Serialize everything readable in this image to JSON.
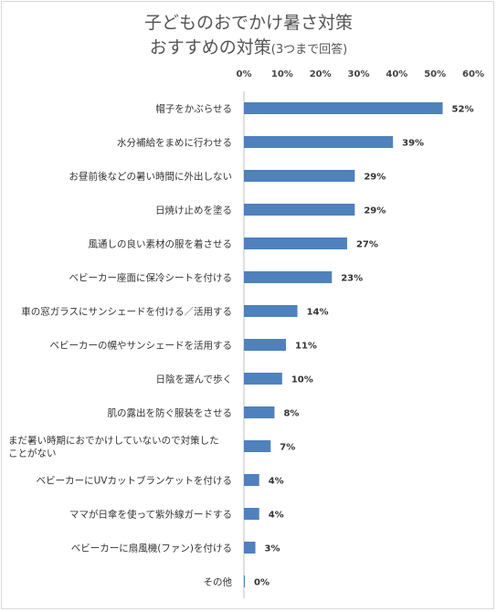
{
  "chart_data": {
    "type": "bar",
    "orientation": "horizontal",
    "title_line1": "子どものおでかけ暑さ対策",
    "title_line2": "おすすめの対策",
    "title_note": "(3つまで回答)",
    "categories": [
      "帽子をかぶらせる",
      "水分補給をまめに行わせる",
      "お昼前後などの暑い時間に外出しない",
      "日焼け止めを塗る",
      "風通しの良い素材の服を着させる",
      "ベビーカー座面に保冷シートを付ける",
      "車の窓ガラスにサンシェードを付ける／活用する",
      "ベビーカーの幌やサンシェードを活用する",
      "日陰を選んで歩く",
      "肌の露出を防ぐ服装をさせる",
      "まだ暑い時期におでかけしていないので対策したことがない",
      "ベビーカーにUVカットブランケットを付ける",
      "ママが日傘を使って紫外線ガードする",
      "ベビーカーに扇風機(ファン)を付ける",
      "その他"
    ],
    "category_lines": [
      [
        "帽子をかぶらせる"
      ],
      [
        "水分補給をまめに行わせる"
      ],
      [
        "お昼前後などの暑い時間に外出しない"
      ],
      [
        "日焼け止めを塗る"
      ],
      [
        "風通しの良い素材の服を着させる"
      ],
      [
        "ベビーカー座面に保冷シートを付ける"
      ],
      [
        "車の窓ガラスにサンシェードを付ける／活用する"
      ],
      [
        "ベビーカーの幌やサンシェードを活用する"
      ],
      [
        "日陰を選んで歩く"
      ],
      [
        "肌の露出を防ぐ服装をさせる"
      ],
      [
        "まだ暑い時期におでかけしていないので対策した",
        "ことがない"
      ],
      [
        "ベビーカーにUVカットブランケットを付ける"
      ],
      [
        "ママが日傘を使って紫外線ガードする"
      ],
      [
        "ベビーカーに扇風機(ファン)を付ける"
      ],
      [
        "その他"
      ]
    ],
    "values": [
      52,
      39,
      29,
      29,
      27,
      23,
      14,
      11,
      10,
      8,
      7,
      4,
      4,
      3,
      0
    ],
    "value_labels": [
      "52%",
      "39%",
      "29%",
      "29%",
      "27%",
      "23%",
      "14%",
      "11%",
      "10%",
      "8%",
      "7%",
      "4%",
      "4%",
      "3%",
      "0%"
    ],
    "xlim": [
      0,
      60
    ],
    "x_ticks": [
      0,
      10,
      20,
      30,
      40,
      50,
      60
    ],
    "x_tick_labels": [
      "0%",
      "10%",
      "20%",
      "30%",
      "40%",
      "50%",
      "60%"
    ],
    "axis_position": "top",
    "grid": false,
    "legend": "none",
    "bar_color": "#4f81bd"
  }
}
